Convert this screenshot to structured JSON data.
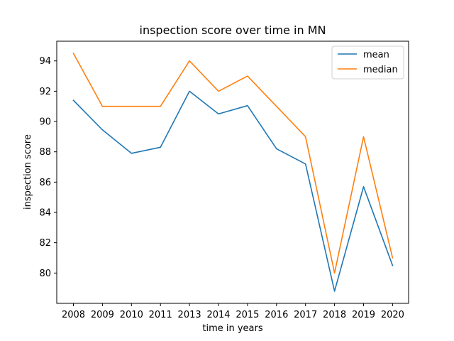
{
  "chart_data": {
    "type": "line",
    "title": "inspection score over time in MN",
    "xlabel": "time in years",
    "ylabel": "inspection score",
    "categories": [
      "2008",
      "2009",
      "2010",
      "2011",
      "2013",
      "2014",
      "2015",
      "2016",
      "2017",
      "2018",
      "2019",
      "2020"
    ],
    "series": [
      {
        "name": "mean",
        "color": "#1f77b4",
        "values": [
          91.4,
          89.45,
          87.9,
          88.3,
          92.0,
          90.5,
          91.05,
          88.2,
          87.2,
          78.8,
          85.7,
          80.5
        ]
      },
      {
        "name": "median",
        "color": "#ff7f0e",
        "values": [
          94.5,
          91.0,
          91.0,
          91.0,
          94.0,
          92.0,
          93.0,
          91.0,
          89.0,
          80.0,
          89.0,
          81.0
        ]
      }
    ],
    "yticks": [
      80,
      82,
      84,
      86,
      88,
      90,
      92,
      94
    ],
    "ylim": [
      78.0,
      95.3
    ],
    "legend_position": "top-right",
    "grid": false
  }
}
